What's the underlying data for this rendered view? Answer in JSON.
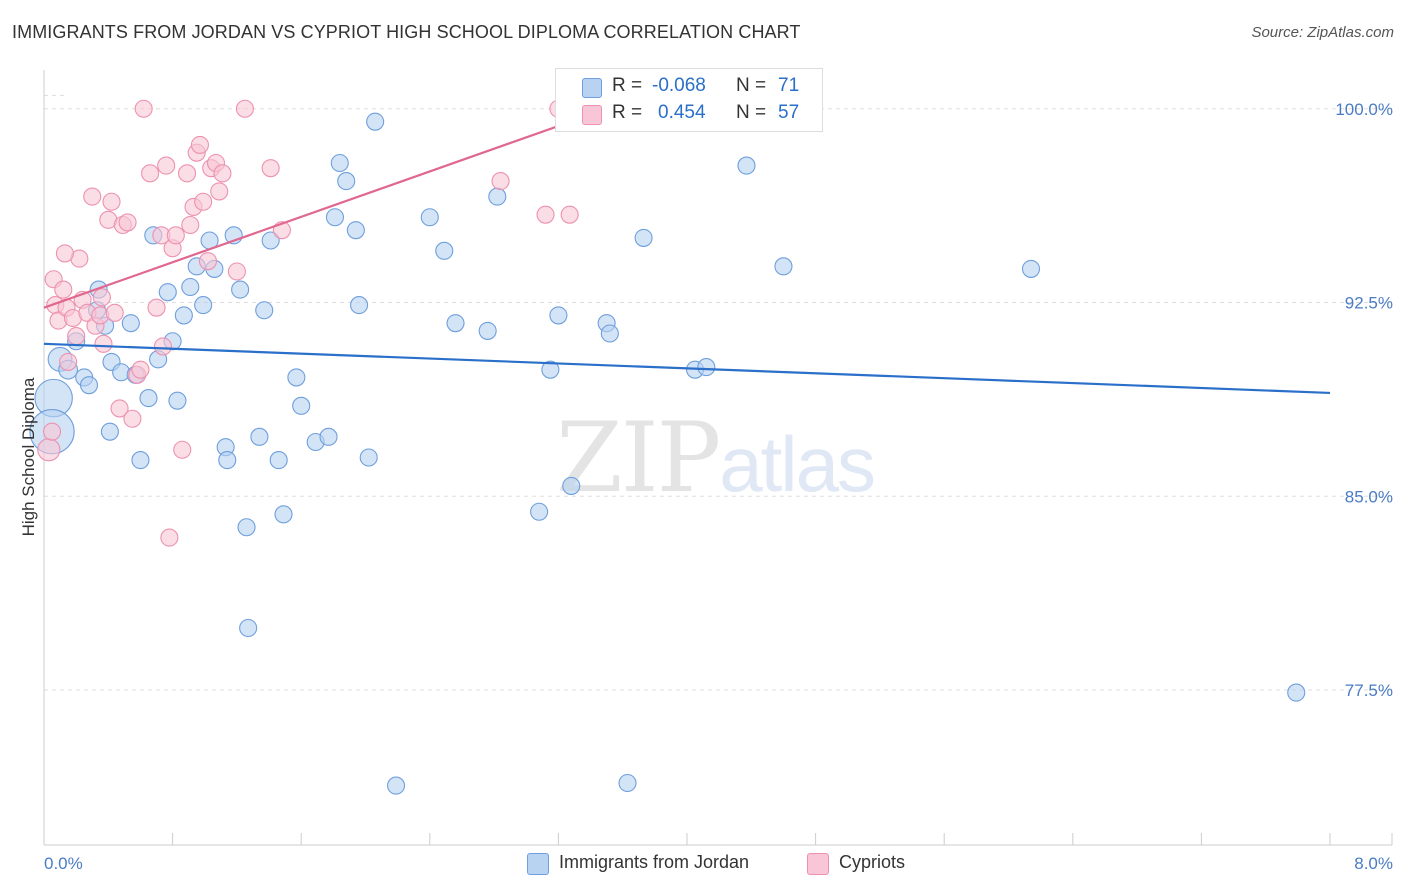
{
  "title": "IMMIGRANTS FROM JORDAN VS CYPRIOT HIGH SCHOOL DIPLOMA CORRELATION CHART",
  "source": "Source: ZipAtlas.com",
  "watermark": {
    "zip": "ZIP",
    "atlas": "atlas"
  },
  "colors": {
    "blue_fill": "#b8d2f2",
    "blue_stroke": "#6f9fdc",
    "blue_line": "#2a6fc9",
    "pink_fill": "#f8c6d6",
    "pink_stroke": "#ec92b0",
    "pink_line": "#e0678f",
    "grid": "#dddddd",
    "axis_tick": "#4a7cc4"
  },
  "legend": {
    "r_label": "R =",
    "n_label": "N =",
    "blue": {
      "r": "-0.068",
      "n": "71"
    },
    "pink": {
      "r": "0.454",
      "n": "57"
    }
  },
  "bottom_legend": [
    "Immigrants from Jordan",
    "Cypriots"
  ],
  "chart_data": {
    "type": "scatter",
    "title": "IMMIGRANTS FROM JORDAN VS CYPRIOT HIGH SCHOOL DIPLOMA CORRELATION CHART",
    "xlabel": "",
    "ylabel": "High School Diploma",
    "xlim": [
      0.0,
      8.0
    ],
    "ylim": [
      71.5,
      101.5
    ],
    "x_ticks": [
      "0.0%",
      "8.0%"
    ],
    "y_ticks": [
      {
        "value": 100.0,
        "label": "100.0%"
      },
      {
        "value": 92.5,
        "label": "92.5%"
      },
      {
        "value": 85.0,
        "label": "85.0%"
      },
      {
        "value": 77.5,
        "label": "77.5%"
      }
    ],
    "grid": "horizontal dashed",
    "legend_position": "top-center",
    "series": [
      {
        "name": "Immigrants from Jordan",
        "color": "#6f9fdc",
        "trend": {
          "x": [
            0.0,
            8.0
          ],
          "y": [
            90.9,
            89.0
          ]
        },
        "points": [
          [
            0.06,
            88.8,
            2.2
          ],
          [
            0.05,
            87.5,
            2.6
          ],
          [
            0.1,
            90.3,
            1.4
          ],
          [
            0.15,
            89.9,
            1.1
          ],
          [
            0.2,
            91.0,
            1.0
          ],
          [
            0.25,
            89.6,
            1.0
          ],
          [
            0.28,
            89.3,
            1.0
          ],
          [
            0.33,
            92.2,
            1.0
          ],
          [
            0.34,
            93.0,
            1.0
          ],
          [
            0.38,
            91.6,
            1.0
          ],
          [
            0.41,
            87.5,
            1.0
          ],
          [
            0.42,
            90.2,
            1.0
          ],
          [
            0.48,
            89.8,
            1.0
          ],
          [
            0.54,
            91.7,
            1.0
          ],
          [
            0.57,
            89.7,
            1.0
          ],
          [
            0.6,
            86.4,
            1.0
          ],
          [
            0.65,
            88.8,
            1.0
          ],
          [
            0.68,
            95.1,
            1.0
          ],
          [
            0.71,
            90.3,
            1.0
          ],
          [
            0.77,
            92.9,
            1.0
          ],
          [
            0.8,
            91.0,
            1.0
          ],
          [
            0.83,
            88.7,
            1.0
          ],
          [
            0.87,
            92.0,
            1.0
          ],
          [
            0.91,
            93.1,
            1.0
          ],
          [
            0.95,
            93.9,
            1.0
          ],
          [
            0.99,
            92.4,
            1.0
          ],
          [
            1.03,
            94.9,
            1.0
          ],
          [
            1.06,
            93.8,
            1.0
          ],
          [
            1.13,
            86.9,
            1.0
          ],
          [
            1.14,
            86.4,
            1.0
          ],
          [
            1.18,
            95.1,
            1.0
          ],
          [
            1.22,
            93.0,
            1.0
          ],
          [
            1.26,
            83.8,
            1.0
          ],
          [
            1.27,
            79.9,
            1.0
          ],
          [
            1.34,
            87.3,
            1.0
          ],
          [
            1.37,
            92.2,
            1.0
          ],
          [
            1.41,
            94.9,
            1.0
          ],
          [
            1.46,
            86.4,
            1.0
          ],
          [
            1.49,
            84.3,
            1.0
          ],
          [
            1.57,
            89.6,
            1.0
          ],
          [
            1.6,
            88.5,
            1.0
          ],
          [
            1.69,
            87.1,
            1.0
          ],
          [
            1.77,
            87.3,
            1.0
          ],
          [
            1.81,
            95.8,
            1.0
          ],
          [
            1.84,
            97.9,
            1.0
          ],
          [
            1.88,
            97.2,
            1.0
          ],
          [
            1.94,
            95.3,
            1.0
          ],
          [
            1.96,
            92.4,
            1.0
          ],
          [
            2.02,
            86.5,
            1.0
          ],
          [
            2.06,
            99.5,
            1.0
          ],
          [
            2.19,
            73.8,
            1.0
          ],
          [
            2.4,
            95.8,
            1.0
          ],
          [
            2.49,
            94.5,
            1.0
          ],
          [
            2.56,
            91.7,
            1.0
          ],
          [
            2.76,
            91.4,
            1.0
          ],
          [
            2.82,
            96.6,
            1.0
          ],
          [
            3.08,
            84.4,
            1.0
          ],
          [
            3.15,
            89.9,
            1.0
          ],
          [
            3.2,
            92.0,
            1.0
          ],
          [
            3.28,
            85.4,
            1.0
          ],
          [
            3.5,
            91.7,
            1.0
          ],
          [
            3.52,
            91.3,
            1.0
          ],
          [
            3.63,
            73.9,
            1.0
          ],
          [
            3.73,
            95.0,
            1.0
          ],
          [
            3.8,
            99.8,
            1.0
          ],
          [
            4.05,
            89.9,
            1.0
          ],
          [
            4.12,
            90.0,
            1.0
          ],
          [
            4.37,
            97.8,
            1.0
          ],
          [
            4.6,
            93.9,
            1.0
          ],
          [
            6.14,
            93.8,
            1.0
          ],
          [
            7.79,
            77.4,
            1.0
          ]
        ]
      },
      {
        "name": "Cypriots",
        "color": "#ec92b0",
        "trend": {
          "x": [
            0.0,
            3.55
          ],
          "y": [
            92.3,
            100.1
          ]
        },
        "points": [
          [
            0.03,
            86.8,
            1.3
          ],
          [
            0.05,
            87.5,
            1.0
          ],
          [
            0.06,
            93.4,
            1.0
          ],
          [
            0.07,
            92.4,
            1.0
          ],
          [
            0.09,
            91.8,
            1.0
          ],
          [
            0.12,
            93.0,
            1.0
          ],
          [
            0.14,
            92.3,
            1.0
          ],
          [
            0.15,
            90.2,
            1.0
          ],
          [
            0.18,
            91.9,
            1.0
          ],
          [
            0.2,
            91.2,
            1.0
          ],
          [
            0.22,
            94.2,
            1.0
          ],
          [
            0.24,
            92.6,
            1.0
          ],
          [
            0.27,
            92.1,
            1.0
          ],
          [
            0.3,
            96.6,
            1.0
          ],
          [
            0.32,
            91.6,
            1.0
          ],
          [
            0.35,
            92.0,
            1.0
          ],
          [
            0.37,
            90.9,
            1.0
          ],
          [
            0.4,
            95.7,
            1.0
          ],
          [
            0.42,
            96.4,
            1.0
          ],
          [
            0.44,
            92.1,
            1.0
          ],
          [
            0.47,
            88.4,
            1.0
          ],
          [
            0.49,
            95.5,
            1.0
          ],
          [
            0.52,
            95.6,
            1.0
          ],
          [
            0.55,
            88.0,
            1.0
          ],
          [
            0.58,
            89.7,
            1.0
          ],
          [
            0.6,
            89.9,
            1.0
          ],
          [
            0.62,
            100.0,
            1.0
          ],
          [
            0.66,
            97.5,
            1.0
          ],
          [
            0.7,
            92.3,
            1.0
          ],
          [
            0.73,
            95.1,
            1.0
          ],
          [
            0.76,
            97.8,
            1.0
          ],
          [
            0.78,
            83.4,
            1.0
          ],
          [
            0.8,
            94.6,
            1.0
          ],
          [
            0.82,
            95.1,
            1.0
          ],
          [
            0.86,
            86.8,
            1.0
          ],
          [
            0.89,
            97.5,
            1.0
          ],
          [
            0.91,
            95.5,
            1.0
          ],
          [
            0.93,
            96.2,
            1.0
          ],
          [
            0.95,
            98.3,
            1.0
          ],
          [
            0.97,
            98.6,
            1.0
          ],
          [
            0.99,
            96.4,
            1.0
          ],
          [
            1.02,
            94.1,
            1.0
          ],
          [
            1.04,
            97.7,
            1.0
          ],
          [
            1.07,
            97.9,
            1.0
          ],
          [
            1.09,
            96.8,
            1.0
          ],
          [
            1.11,
            97.5,
            1.0
          ],
          [
            1.2,
            93.7,
            1.0
          ],
          [
            1.25,
            100.0,
            1.0
          ],
          [
            1.41,
            97.7,
            1.0
          ],
          [
            1.48,
            95.3,
            1.0
          ],
          [
            2.84,
            97.2,
            1.0
          ],
          [
            3.12,
            95.9,
            1.0
          ],
          [
            3.2,
            100.0,
            1.0
          ],
          [
            3.27,
            95.9,
            1.0
          ],
          [
            0.13,
            94.4,
            1.0
          ],
          [
            0.36,
            92.7,
            1.0
          ],
          [
            0.74,
            90.8,
            1.0
          ]
        ]
      }
    ]
  }
}
